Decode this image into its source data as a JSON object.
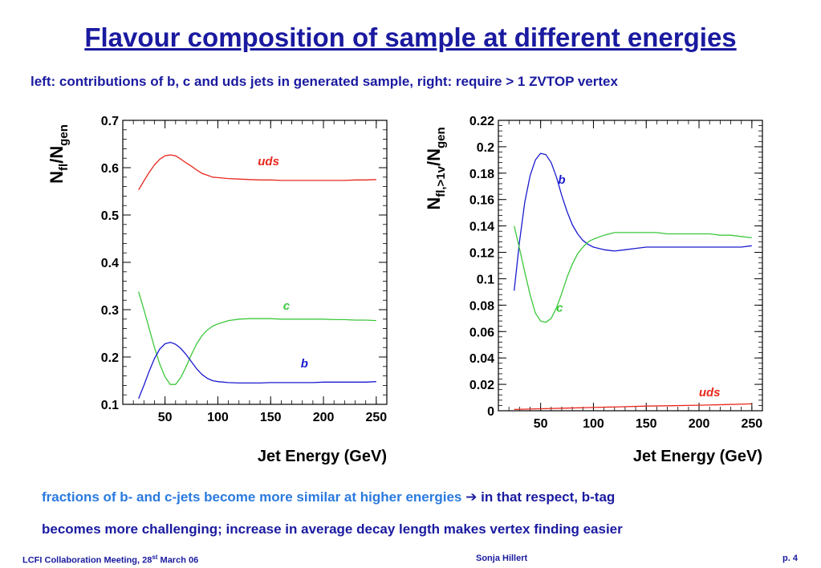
{
  "slide": {
    "title": "Flavour composition of sample at different energies",
    "subtitle": "left: contributions of b, c and uds jets in generated sample, right: require > 1 ZVTOP vertex",
    "note_line1_part1": "fractions of b- and c-jets become more similar at higher energies",
    "note_arrow": "➔",
    "note_line1_part2": "in that respect, b-tag",
    "note_line2": "becomes more challenging; increase in average decay length makes vertex finding easier",
    "footer_left_prefix": "LCFI Collaboration Meeting, 28",
    "footer_left_sup": "st",
    "footer_left_suffix": " March 06",
    "footer_center": "Sonja Hillert",
    "footer_right": "p. 4"
  },
  "colors": {
    "uds": "#e8281e",
    "c": "#3cc83c",
    "b": "#1a1ad0",
    "text": "#1a1aa0"
  },
  "chart_data": [
    {
      "type": "line",
      "xlabel": "Jet Energy (GeV)",
      "ylabel_main": "N",
      "ylabel_sub1": "fl",
      "ylabel_sep": "/N",
      "ylabel_sub2": "gen",
      "xlim": [
        10,
        260
      ],
      "ylim": [
        0.1,
        0.7
      ],
      "xticks": [
        50,
        100,
        150,
        200,
        250
      ],
      "xtick_labels": [
        "50",
        "100",
        "150",
        "200",
        "250"
      ],
      "yticks": [
        0.1,
        0.2,
        0.3,
        0.4,
        0.5,
        0.6,
        0.7
      ],
      "ytick_labels": [
        "0.1",
        "0.2",
        "0.3",
        "0.4",
        "0.5",
        "0.6",
        "0.7"
      ],
      "series": [
        {
          "name": "uds",
          "color": "#e8281e",
          "label_at": [
            148,
            0.605
          ],
          "x": [
            25,
            30,
            35,
            40,
            45,
            50,
            55,
            60,
            65,
            70,
            75,
            80,
            85,
            90,
            95,
            100,
            110,
            120,
            130,
            140,
            150,
            160,
            170,
            180,
            190,
            200,
            210,
            220,
            230,
            240,
            250
          ],
          "y": [
            0.553,
            0.572,
            0.59,
            0.606,
            0.618,
            0.625,
            0.627,
            0.625,
            0.618,
            0.61,
            0.603,
            0.595,
            0.588,
            0.584,
            0.58,
            0.579,
            0.577,
            0.576,
            0.575,
            0.574,
            0.574,
            0.573,
            0.573,
            0.573,
            0.573,
            0.573,
            0.573,
            0.573,
            0.574,
            0.574,
            0.575
          ]
        },
        {
          "name": "c",
          "color": "#3cc83c",
          "label_at": [
            165,
            0.3
          ],
          "x": [
            25,
            30,
            35,
            40,
            45,
            50,
            55,
            60,
            65,
            70,
            75,
            80,
            85,
            90,
            95,
            100,
            110,
            120,
            130,
            140,
            150,
            160,
            170,
            180,
            190,
            200,
            210,
            220,
            230,
            240,
            250
          ],
          "y": [
            0.338,
            0.3,
            0.26,
            0.22,
            0.185,
            0.158,
            0.142,
            0.142,
            0.157,
            0.18,
            0.205,
            0.228,
            0.245,
            0.257,
            0.265,
            0.27,
            0.277,
            0.28,
            0.281,
            0.281,
            0.281,
            0.28,
            0.28,
            0.28,
            0.28,
            0.28,
            0.279,
            0.279,
            0.278,
            0.278,
            0.277
          ]
        },
        {
          "name": "b",
          "color": "#1a1ad0",
          "label_at": [
            182,
            0.178
          ],
          "x": [
            25,
            30,
            35,
            40,
            45,
            50,
            55,
            60,
            65,
            70,
            75,
            80,
            85,
            90,
            95,
            100,
            110,
            120,
            130,
            140,
            150,
            160,
            170,
            180,
            190,
            200,
            210,
            220,
            230,
            240,
            250
          ],
          "y": [
            0.112,
            0.14,
            0.17,
            0.197,
            0.217,
            0.228,
            0.231,
            0.227,
            0.218,
            0.205,
            0.19,
            0.175,
            0.163,
            0.155,
            0.15,
            0.148,
            0.146,
            0.145,
            0.145,
            0.145,
            0.146,
            0.146,
            0.146,
            0.146,
            0.146,
            0.147,
            0.147,
            0.147,
            0.147,
            0.147,
            0.148
          ]
        }
      ]
    },
    {
      "type": "line",
      "xlabel": "Jet Energy (GeV)",
      "ylabel_main": "N",
      "ylabel_sub1": "fl,>1v",
      "ylabel_sep": "/N",
      "ylabel_sub2": "gen",
      "xlim": [
        10,
        260
      ],
      "ylim": [
        0,
        0.22
      ],
      "xticks": [
        50,
        100,
        150,
        200,
        250
      ],
      "xtick_labels": [
        "50",
        "100",
        "150",
        "200",
        "250"
      ],
      "yticks": [
        0,
        0.02,
        0.04,
        0.06,
        0.08,
        0.1,
        0.12,
        0.14,
        0.16,
        0.18,
        0.2,
        0.22
      ],
      "ytick_labels": [
        "0",
        "0.02",
        "0.04",
        "0.06",
        "0.08",
        "0.1",
        "0.12",
        "0.14",
        "0.16",
        "0.18",
        "0.2",
        "0.22"
      ],
      "series": [
        {
          "name": "b",
          "color": "#1a1ad0",
          "label_at": [
            70,
            0.172
          ],
          "x": [
            25,
            30,
            35,
            40,
            45,
            50,
            55,
            60,
            65,
            70,
            75,
            80,
            85,
            90,
            95,
            100,
            110,
            120,
            130,
            140,
            150,
            160,
            170,
            180,
            190,
            200,
            210,
            220,
            230,
            240,
            250
          ],
          "y": [
            0.091,
            0.128,
            0.158,
            0.178,
            0.19,
            0.195,
            0.194,
            0.188,
            0.177,
            0.163,
            0.151,
            0.141,
            0.134,
            0.129,
            0.126,
            0.124,
            0.122,
            0.121,
            0.122,
            0.123,
            0.124,
            0.124,
            0.124,
            0.124,
            0.124,
            0.124,
            0.124,
            0.124,
            0.124,
            0.124,
            0.125
          ]
        },
        {
          "name": "c",
          "color": "#3cc83c",
          "label_at": [
            68,
            0.075
          ],
          "x": [
            25,
            30,
            35,
            40,
            45,
            50,
            55,
            60,
            65,
            70,
            75,
            80,
            85,
            90,
            95,
            100,
            110,
            120,
            130,
            140,
            150,
            160,
            170,
            180,
            190,
            200,
            210,
            220,
            230,
            240,
            250
          ],
          "y": [
            0.14,
            0.123,
            0.105,
            0.088,
            0.074,
            0.068,
            0.067,
            0.07,
            0.078,
            0.089,
            0.101,
            0.111,
            0.119,
            0.124,
            0.128,
            0.13,
            0.133,
            0.135,
            0.135,
            0.135,
            0.135,
            0.135,
            0.134,
            0.134,
            0.134,
            0.134,
            0.134,
            0.133,
            0.133,
            0.132,
            0.131
          ]
        },
        {
          "name": "uds",
          "color": "#e8281e",
          "label_at": [
            210,
            0.011
          ],
          "x": [
            25,
            50,
            75,
            100,
            125,
            150,
            175,
            200,
            225,
            250
          ],
          "y": [
            0.001,
            0.0015,
            0.002,
            0.0025,
            0.003,
            0.0035,
            0.0038,
            0.0042,
            0.0047,
            0.0052
          ]
        }
      ]
    }
  ]
}
